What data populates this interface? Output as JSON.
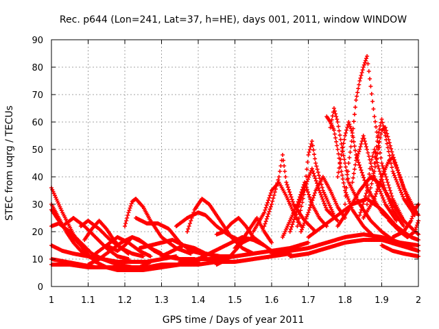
{
  "chart_data": {
    "type": "scatter",
    "title": "Rec. p644 (Lon=241, Lat=37, h=HE), days 001, 2011, window WINDOW",
    "xlabel": "GPS time / Days of year 2011",
    "ylabel": "STEC from uqrg / TECUs",
    "xlim": [
      1,
      2
    ],
    "ylim": [
      0,
      90
    ],
    "xticks": [
      "1",
      "1.1",
      "1.2",
      "1.3",
      "1.4",
      "1.5",
      "1.6",
      "1.7",
      "1.8",
      "1.9",
      "2"
    ],
    "yticks": [
      "0",
      "10",
      "20",
      "30",
      "40",
      "50",
      "60",
      "70",
      "80",
      "90"
    ],
    "grid": true,
    "marker": "+",
    "color": "#ff0000",
    "series": [
      {
        "x": [
          1.0,
          1.03,
          1.06,
          1.09,
          1.12,
          1.15,
          1.18,
          1.21,
          1.24,
          1.27
        ],
        "values": [
          36,
          27,
          19,
          13,
          9,
          7,
          6,
          6,
          7,
          9
        ]
      },
      {
        "x": [
          1.0,
          1.02,
          1.04,
          1.06,
          1.08,
          1.1,
          1.12
        ],
        "values": [
          30,
          25,
          20,
          16,
          13,
          11,
          10
        ]
      },
      {
        "x": [
          1.0,
          1.02,
          1.05,
          1.08,
          1.1
        ],
        "values": [
          28,
          24,
          19,
          15,
          13
        ]
      },
      {
        "x": [
          1.0,
          1.02,
          1.05,
          1.08,
          1.11,
          1.14,
          1.18,
          1.22,
          1.26,
          1.3
        ],
        "values": [
          22,
          23,
          20,
          16,
          12,
          10,
          8,
          7,
          7,
          8
        ]
      },
      {
        "x": [
          1.0,
          1.03,
          1.06,
          1.1,
          1.14,
          1.18,
          1.22,
          1.26,
          1.3,
          1.34
        ],
        "values": [
          15,
          13,
          12,
          11,
          10,
          9,
          9,
          9,
          10,
          11
        ]
      },
      {
        "x": [
          1.0,
          1.04,
          1.08,
          1.12,
          1.16,
          1.2,
          1.25,
          1.3,
          1.35,
          1.4
        ],
        "values": [
          10,
          9,
          8,
          7,
          7,
          7,
          7,
          7,
          8,
          9
        ]
      },
      {
        "x": [
          1.0,
          1.05,
          1.1,
          1.15,
          1.2,
          1.25,
          1.3
        ],
        "values": [
          8,
          8,
          7,
          7,
          6,
          6,
          7
        ]
      },
      {
        "x": [
          1.03,
          1.06,
          1.09,
          1.12,
          1.15,
          1.18,
          1.21
        ],
        "values": [
          22,
          25,
          22,
          18,
          14,
          11,
          10
        ]
      },
      {
        "x": [
          1.08,
          1.1,
          1.13,
          1.16,
          1.19,
          1.22,
          1.25
        ],
        "values": [
          22,
          24,
          21,
          17,
          14,
          12,
          11
        ]
      },
      {
        "x": [
          1.09,
          1.11,
          1.13,
          1.15,
          1.17,
          1.19,
          1.21
        ],
        "values": [
          17,
          21,
          24,
          21,
          17,
          14,
          12
        ]
      },
      {
        "x": [
          1.1,
          1.13,
          1.16,
          1.19,
          1.22,
          1.25,
          1.28,
          1.31,
          1.35,
          1.39
        ],
        "values": [
          8,
          10,
          13,
          16,
          18,
          16,
          13,
          11,
          10,
          10
        ]
      },
      {
        "x": [
          1.12,
          1.15,
          1.18,
          1.21,
          1.24,
          1.27
        ],
        "values": [
          12,
          15,
          18,
          16,
          13,
          11
        ]
      },
      {
        "x": [
          1.15,
          1.18,
          1.2,
          1.22,
          1.24,
          1.27,
          1.3
        ],
        "values": [
          15,
          13,
          15,
          18,
          17,
          14,
          12
        ]
      },
      {
        "x": [
          1.2,
          1.21,
          1.22,
          1.23,
          1.25,
          1.27,
          1.3,
          1.34,
          1.38
        ],
        "values": [
          22,
          27,
          31,
          32,
          29,
          24,
          18,
          14,
          12
        ]
      },
      {
        "x": [
          1.23,
          1.26,
          1.29,
          1.32,
          1.35,
          1.38,
          1.41
        ],
        "values": [
          25,
          23,
          23,
          21,
          16,
          13,
          12
        ]
      },
      {
        "x": [
          1.24,
          1.27,
          1.3,
          1.33,
          1.36,
          1.39,
          1.42,
          1.46,
          1.5
        ],
        "values": [
          14,
          15,
          16,
          17,
          15,
          13,
          12,
          11,
          11
        ]
      },
      {
        "x": [
          1.3,
          1.33,
          1.36,
          1.39,
          1.42,
          1.45,
          1.48
        ],
        "values": [
          11,
          13,
          15,
          14,
          12,
          11,
          10
        ]
      },
      {
        "x": [
          1.34,
          1.37,
          1.4,
          1.42,
          1.45,
          1.48,
          1.51
        ],
        "values": [
          22,
          25,
          27,
          26,
          22,
          19,
          17
        ]
      },
      {
        "x": [
          1.37,
          1.39,
          1.41,
          1.43,
          1.46,
          1.49,
          1.52,
          1.55
        ],
        "values": [
          20,
          28,
          32,
          30,
          24,
          18,
          14,
          12
        ]
      },
      {
        "x": [
          1.3,
          1.35,
          1.4,
          1.45,
          1.5,
          1.55,
          1.6,
          1.65
        ],
        "values": [
          8,
          8,
          8,
          9,
          9,
          10,
          11,
          12
        ]
      },
      {
        "x": [
          1.35,
          1.4,
          1.45,
          1.5,
          1.55,
          1.6,
          1.65,
          1.7
        ],
        "values": [
          9,
          10,
          10,
          11,
          12,
          13,
          14,
          16
        ]
      },
      {
        "x": [
          1.4,
          1.43,
          1.46,
          1.49,
          1.52,
          1.55,
          1.58
        ],
        "values": [
          10,
          12,
          14,
          16,
          18,
          17,
          15
        ]
      },
      {
        "x": [
          1.45,
          1.47,
          1.49,
          1.51,
          1.53,
          1.55
        ],
        "values": [
          19,
          20,
          23,
          25,
          22,
          18
        ]
      },
      {
        "x": [
          1.45,
          1.48,
          1.5,
          1.52,
          1.55,
          1.58,
          1.61
        ],
        "values": [
          8,
          10,
          13,
          16,
          18,
          15,
          12
        ]
      },
      {
        "x": [
          1.5,
          1.52,
          1.54,
          1.56,
          1.58,
          1.6
        ],
        "values": [
          14,
          17,
          21,
          25,
          20,
          16
        ]
      },
      {
        "x": [
          1.55,
          1.58,
          1.6,
          1.62,
          1.64,
          1.66,
          1.68
        ],
        "values": [
          20,
          27,
          35,
          38,
          33,
          27,
          22
        ]
      },
      {
        "x": [
          1.58,
          1.6,
          1.62,
          1.63,
          1.64,
          1.66,
          1.69,
          1.72
        ],
        "values": [
          22,
          30,
          40,
          48,
          38,
          30,
          24,
          20
        ]
      },
      {
        "x": [
          1.63,
          1.65,
          1.67,
          1.69,
          1.71,
          1.73,
          1.75
        ],
        "values": [
          18,
          24,
          30,
          38,
          30,
          25,
          22
        ]
      },
      {
        "x": [
          1.65,
          1.67,
          1.69,
          1.71,
          1.73,
          1.75,
          1.78
        ],
        "values": [
          20,
          28,
          36,
          43,
          35,
          28,
          24
        ]
      },
      {
        "x": [
          1.67,
          1.69,
          1.7,
          1.71,
          1.72,
          1.74,
          1.77
        ],
        "values": [
          22,
          35,
          48,
          53,
          45,
          35,
          26
        ]
      },
      {
        "x": [
          1.68,
          1.7,
          1.72,
          1.74,
          1.76,
          1.78,
          1.8
        ],
        "values": [
          20,
          27,
          35,
          40,
          35,
          29,
          25
        ]
      },
      {
        "x": [
          1.6,
          1.65,
          1.7,
          1.75,
          1.8,
          1.85,
          1.9,
          1.95,
          2.0
        ],
        "values": [
          12,
          13,
          14,
          16,
          18,
          19,
          18,
          16,
          15
        ]
      },
      {
        "x": [
          1.65,
          1.7,
          1.75,
          1.8,
          1.85,
          1.9,
          1.95,
          2.0
        ],
        "values": [
          11,
          12,
          14,
          16,
          17,
          17,
          15,
          13
        ]
      },
      {
        "x": [
          1.75,
          1.76,
          1.77,
          1.78,
          1.79,
          1.8,
          1.82,
          1.85,
          1.88
        ],
        "values": [
          62,
          60,
          57,
          50,
          42,
          35,
          28,
          22,
          18
        ]
      },
      {
        "x": [
          1.76,
          1.77,
          1.78,
          1.79,
          1.8,
          1.81,
          1.84,
          1.87,
          1.9
        ],
        "values": [
          58,
          65,
          60,
          52,
          45,
          38,
          30,
          24,
          20
        ]
      },
      {
        "x": [
          1.78,
          1.79,
          1.8,
          1.81,
          1.82,
          1.83,
          1.86,
          1.9,
          1.94
        ],
        "values": [
          40,
          48,
          55,
          60,
          56,
          48,
          36,
          27,
          22
        ]
      },
      {
        "x": [
          1.8,
          1.81,
          1.82,
          1.83,
          1.84,
          1.85,
          1.86,
          1.88,
          1.9,
          1.93,
          1.96
        ],
        "values": [
          30,
          45,
          55,
          68,
          75,
          80,
          84,
          62,
          45,
          32,
          24
        ]
      },
      {
        "x": [
          1.82,
          1.83,
          1.84,
          1.85,
          1.86,
          1.88,
          1.91,
          1.94
        ],
        "values": [
          38,
          46,
          50,
          55,
          50,
          40,
          30,
          24
        ]
      },
      {
        "x": [
          1.84,
          1.86,
          1.87,
          1.88,
          1.89,
          1.91,
          1.93,
          1.96
        ],
        "values": [
          26,
          35,
          45,
          50,
          44,
          35,
          28,
          22
        ]
      },
      {
        "x": [
          1.86,
          1.88,
          1.89,
          1.9,
          1.91,
          1.93,
          1.96,
          1.99
        ],
        "values": [
          30,
          42,
          50,
          57,
          58,
          48,
          36,
          28
        ]
      },
      {
        "x": [
          1.88,
          1.89,
          1.9,
          1.91,
          1.93,
          1.96,
          1.99
        ],
        "values": [
          45,
          55,
          61,
          55,
          42,
          32,
          26
        ]
      },
      {
        "x": [
          1.85,
          1.88,
          1.9,
          1.92,
          1.93,
          1.95,
          1.97,
          2.0
        ],
        "values": [
          25,
          32,
          40,
          46,
          47,
          40,
          32,
          26
        ]
      },
      {
        "x": [
          1.78,
          1.81,
          1.84,
          1.87,
          1.9,
          1.93,
          1.96,
          2.0
        ],
        "values": [
          22,
          28,
          35,
          40,
          37,
          30,
          24,
          19
        ]
      },
      {
        "x": [
          1.7,
          1.74,
          1.78,
          1.82,
          1.86,
          1.9,
          1.94,
          1.98,
          2.0
        ],
        "values": [
          18,
          22,
          26,
          30,
          32,
          28,
          22,
          18,
          17
        ]
      },
      {
        "x": [
          1.9,
          1.93,
          1.96,
          1.98,
          2.0
        ],
        "values": [
          20,
          17,
          15,
          14,
          13
        ]
      },
      {
        "x": [
          1.92,
          1.95,
          1.97,
          1.99,
          2.0
        ],
        "values": [
          24,
          20,
          18,
          20,
          24
        ]
      },
      {
        "x": [
          1.93,
          1.96,
          1.98,
          1.99,
          2.0
        ],
        "values": [
          18,
          20,
          24,
          28,
          30
        ]
      },
      {
        "x": [
          1.9,
          1.93,
          1.96,
          2.0
        ],
        "values": [
          15,
          13,
          12,
          11
        ]
      }
    ]
  }
}
